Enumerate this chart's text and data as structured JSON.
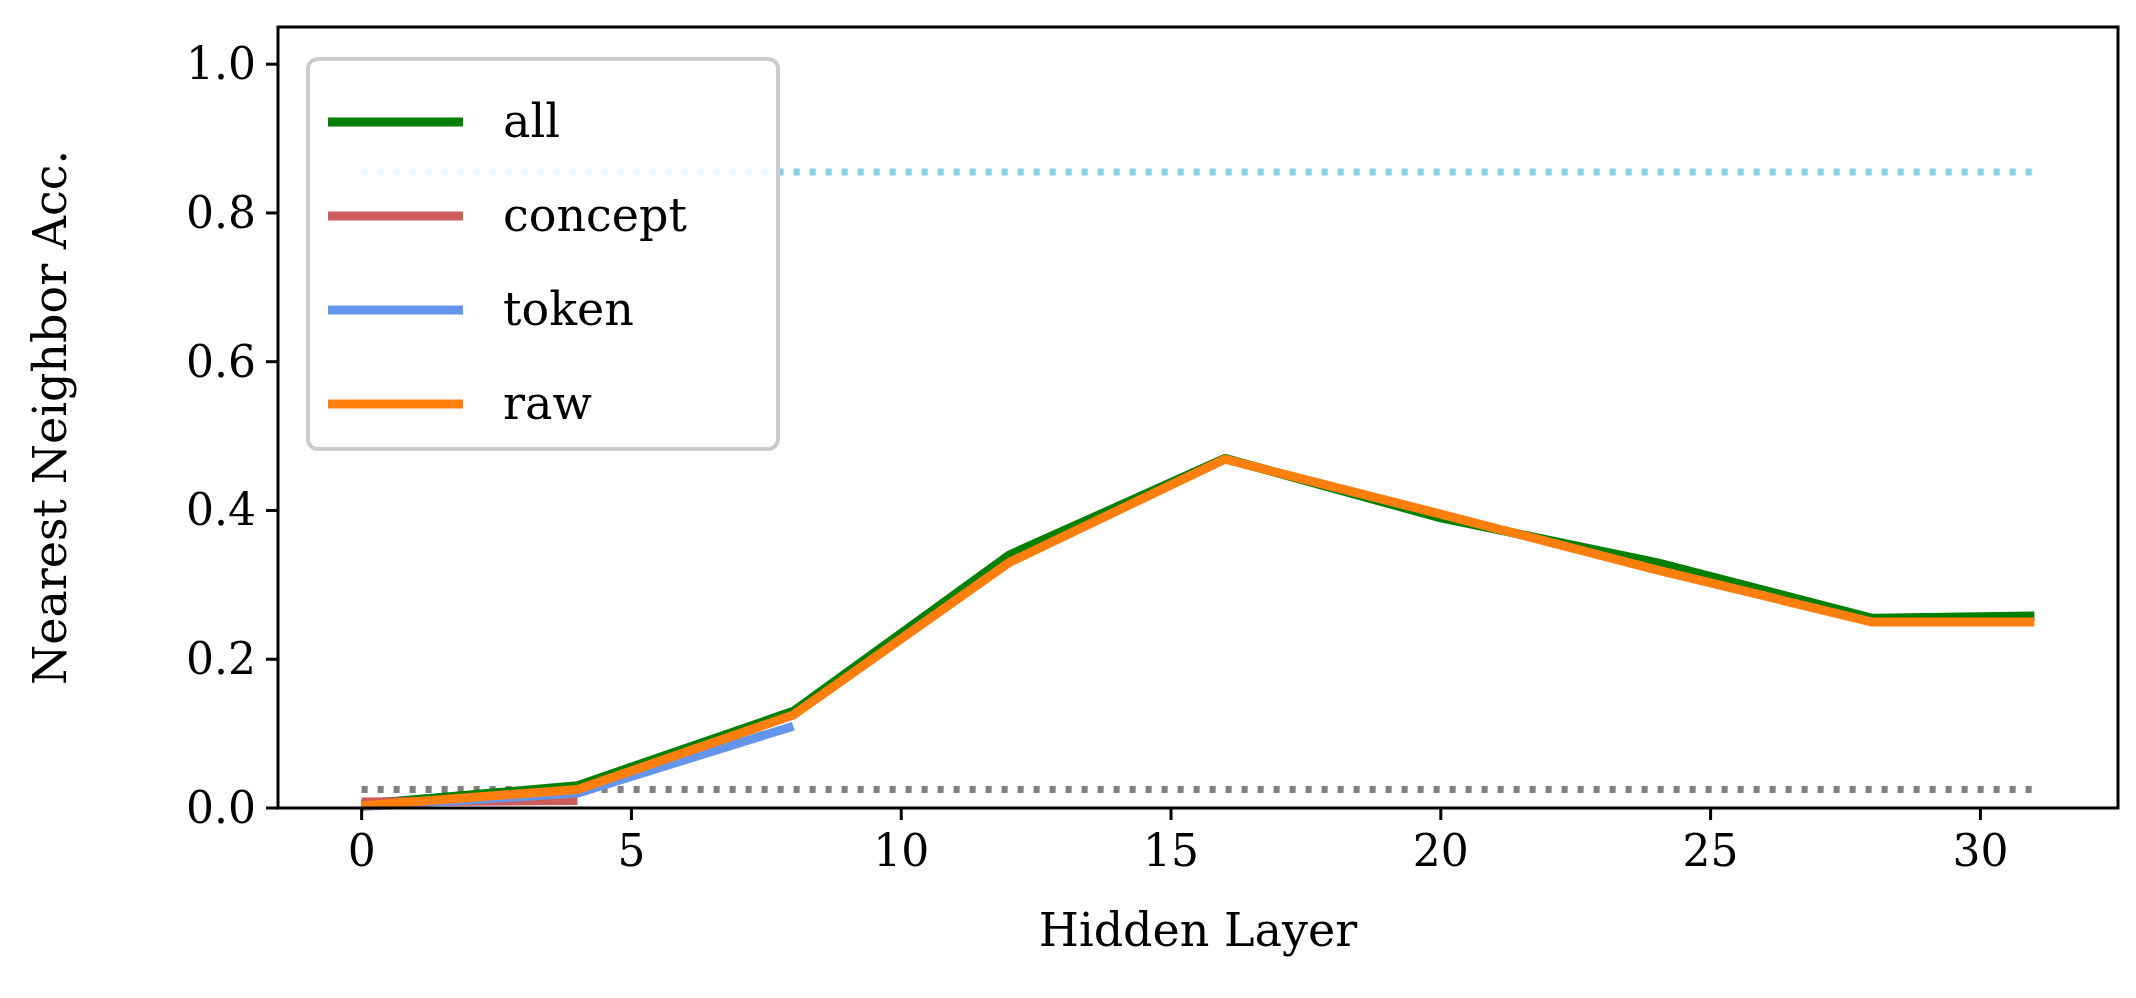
{
  "chart_data": {
    "type": "line",
    "xlabel": "Hidden Layer",
    "ylabel": "Nearest Neighbor Acc.",
    "x": [
      0,
      4,
      8,
      12,
      16,
      20,
      24,
      28,
      31
    ],
    "series": [
      {
        "name": "all",
        "color": "#008000",
        "values": [
          0.005,
          0.03,
          0.13,
          0.34,
          0.47,
          0.39,
          0.33,
          0.255,
          0.258
        ]
      },
      {
        "name": "concept",
        "color": "#cd5c5c",
        "values": [
          0.008,
          0.01,
          null,
          null,
          null,
          null,
          null,
          null,
          null
        ]
      },
      {
        "name": "token",
        "color": "#6495ed",
        "values": [
          0.002,
          0.02,
          0.11,
          null,
          null,
          null,
          null,
          null,
          null
        ]
      },
      {
        "name": "raw",
        "color": "#ff7f0e",
        "values": [
          0.003,
          0.025,
          0.125,
          0.33,
          0.469,
          0.395,
          0.32,
          0.25,
          0.25
        ]
      }
    ],
    "xlim": [
      -1.55,
      32.55
    ],
    "xticks": [
      0,
      5,
      10,
      15,
      20,
      25,
      30
    ],
    "ylim": [
      0,
      1.05
    ],
    "yticks": [
      {
        "value": 0,
        "label": "0.0"
      },
      {
        "value": 0.2,
        "label": "0.2"
      },
      {
        "value": 0.4,
        "label": "0.4"
      },
      {
        "value": 0.6,
        "label": "0.6"
      },
      {
        "value": 0.8,
        "label": "0.8"
      },
      {
        "value": 1,
        "label": "1.0"
      }
    ],
    "ref_lines": [
      {
        "axis": "y",
        "value": 0.855,
        "color": "#87ceeb",
        "line_style": "dotted"
      },
      {
        "axis": "y",
        "value": 0.025,
        "color": "#808080",
        "line_style": "dotted"
      }
    ],
    "legend": "top left",
    "line_style": "solid",
    "marker": "none",
    "grid": false
  }
}
